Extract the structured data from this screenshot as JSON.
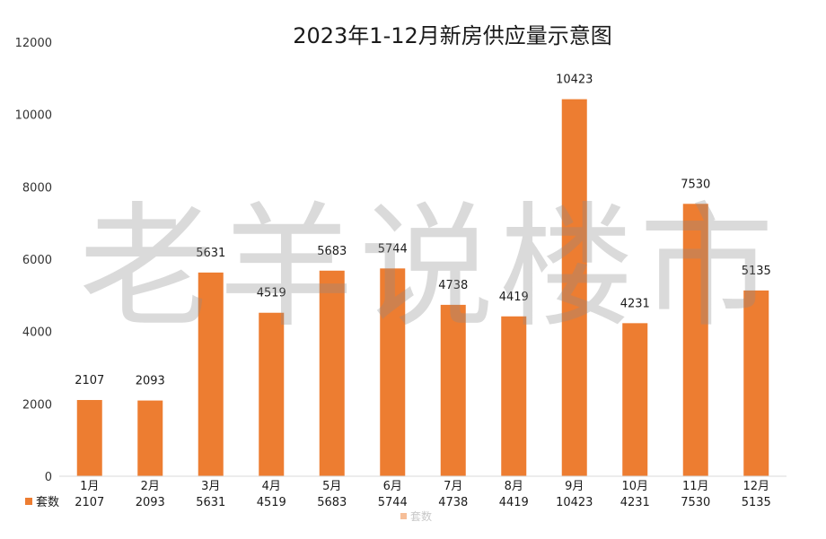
{
  "chart_data": {
    "type": "bar",
    "title": "2023年1-12月新房供应量示意图",
    "categories": [
      "1月",
      "2月",
      "3月",
      "4月",
      "5月",
      "6月",
      "7月",
      "8月",
      "9月",
      "10月",
      "11月",
      "12月"
    ],
    "series": [
      {
        "name": "套数",
        "values": [
          2107,
          2093,
          5631,
          4519,
          5683,
          5744,
          4738,
          4419,
          10423,
          4231,
          7530,
          5135
        ]
      }
    ],
    "ylim": [
      0,
      12000
    ],
    "yticks": [
      0,
      2000,
      4000,
      6000,
      8000,
      10000,
      12000
    ],
    "grid": false,
    "legend": "bottom",
    "data_table": true,
    "bar_color": "#ed7d31"
  },
  "watermark": "老羊说楼市"
}
